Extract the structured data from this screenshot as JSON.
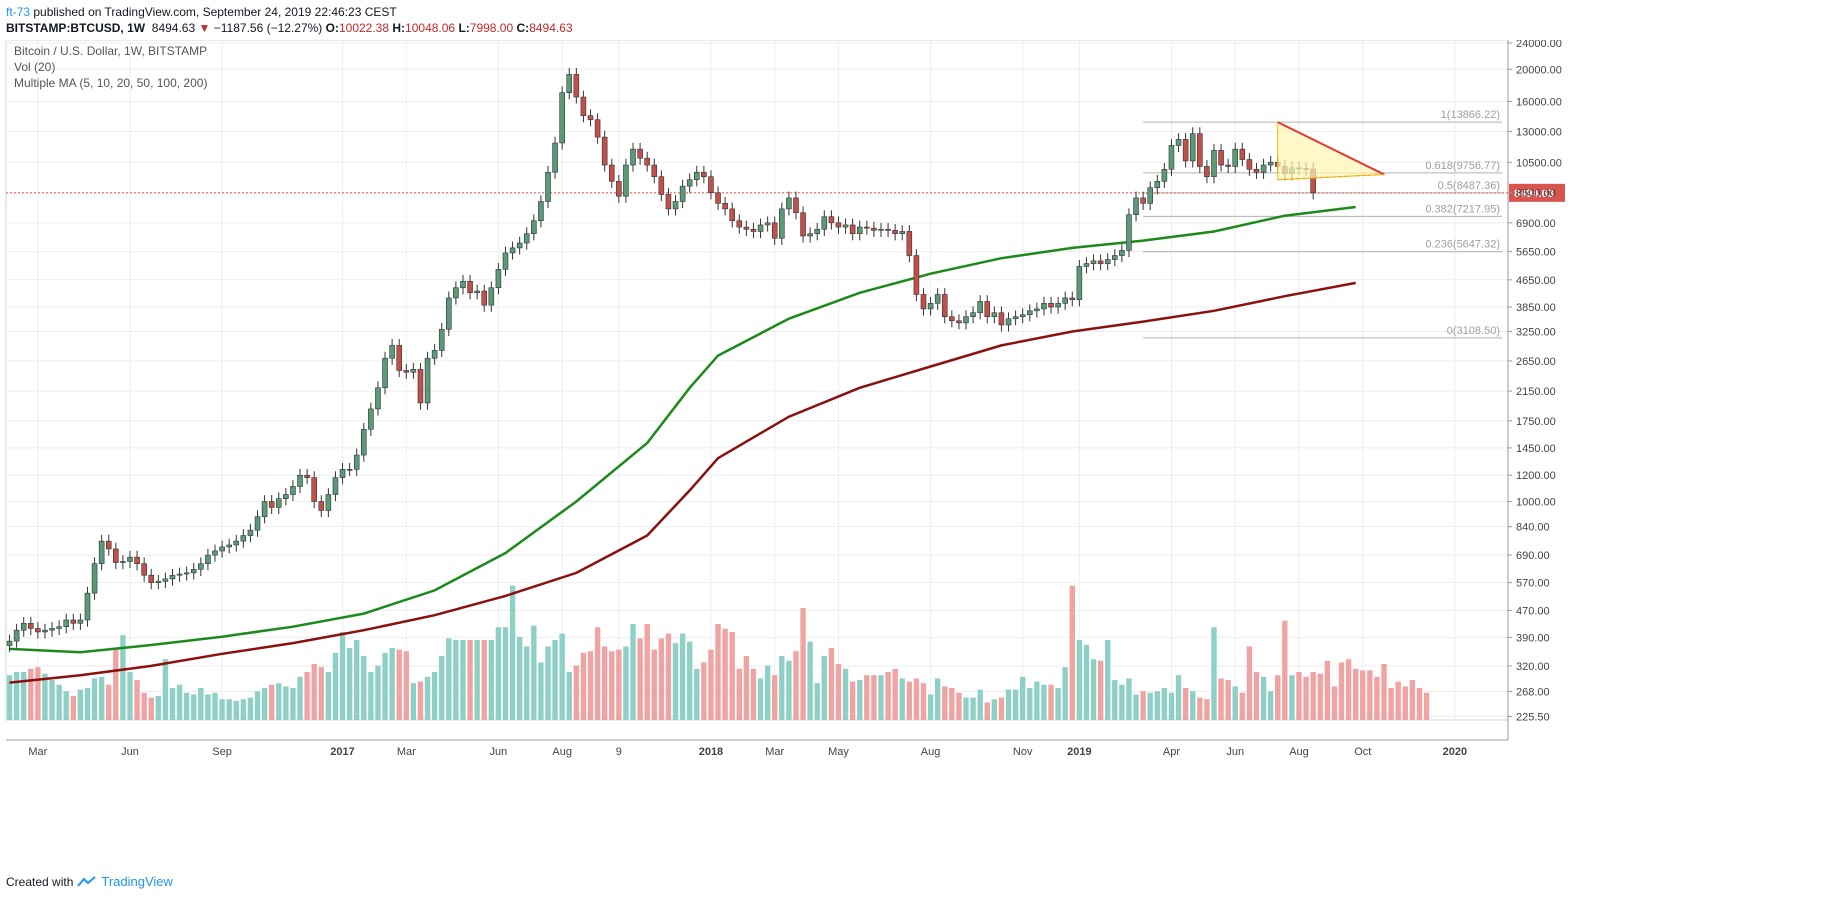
{
  "header": {
    "author": "ft-73",
    "published": "published on TradingView.com, September 24, 2019 22:46:23 CEST"
  },
  "symbol_bar": {
    "symbol": "BITSTAMP:BTCUSD, 1W",
    "last": "8494.63",
    "change_arrow": "▼",
    "change": "−1187.56 (−12.27%)",
    "o_label": "O:",
    "o": "10022.38",
    "h_label": "H:",
    "h": "10048.06",
    "l_label": "L:",
    "l": "7998.00",
    "c_label": "C:",
    "c": "8494.63"
  },
  "legend": [
    "Bitcoin / U.S. Dollar, 1W, BITSTAMP",
    "Vol (20)",
    "Multiple MA (5, 10, 20, 50, 100, 200)"
  ],
  "footer": {
    "created_with": "Created with",
    "brand": "TradingView"
  },
  "colors": {
    "up": "#5b9a78",
    "down": "#c2504a",
    "vol_up": "#8fd0c6",
    "vol_down": "#f0a3a3",
    "ma100": "#1b8a1b",
    "ma200": "#8b1010",
    "trend": "#e53935",
    "triangle_fill": "#fff6b3",
    "last_price_bg": "#d9534f"
  },
  "chart_data": {
    "type": "candlestick",
    "scale": "log",
    "ylim": [
      220,
      24500
    ],
    "y_ticks": [
      "24000.00",
      "20000.00",
      "16000.00",
      "13000.00",
      "10500.00",
      "8500.00",
      "6900.00",
      "5650.00",
      "4650.00",
      "3850.00",
      "3250.00",
      "2650.00",
      "2150.00",
      "1750.00",
      "1450.00",
      "1200.00",
      "1000.00",
      "840.00",
      "690.00",
      "570.00",
      "470.00",
      "390.00",
      "320.00",
      "268.00",
      "225.50"
    ],
    "y_tick_values": [
      24000,
      20000,
      16000,
      13000,
      10500,
      8500,
      6900,
      5650,
      4650,
      3850,
      3250,
      2650,
      2150,
      1750,
      1450,
      1200,
      1000,
      840,
      690,
      570,
      470,
      390,
      320,
      268,
      225.5
    ],
    "x_ticks": [
      {
        "label": "Mar",
        "week": 4
      },
      {
        "label": "Jun",
        "week": 17
      },
      {
        "label": "Sep",
        "week": 30
      },
      {
        "label": "2017",
        "week": 47
      },
      {
        "label": "Mar",
        "week": 56
      },
      {
        "label": "Jun",
        "week": 69
      },
      {
        "label": "Aug",
        "week": 78
      },
      {
        "label": "9",
        "week": 86
      },
      {
        "label": "2018",
        "week": 99
      },
      {
        "label": "Mar",
        "week": 108
      },
      {
        "label": "May",
        "week": 117
      },
      {
        "label": "Aug",
        "week": 130
      },
      {
        "label": "Nov",
        "week": 143
      },
      {
        "label": "2019",
        "week": 151
      },
      {
        "label": "Apr",
        "week": 164
      },
      {
        "label": "Jun",
        "week": 173
      },
      {
        "label": "Aug",
        "week": 182
      },
      {
        "label": "Oct",
        "week": 191
      },
      {
        "label": "2020",
        "week": 204
      }
    ],
    "bold_x_ticks": [
      "2017",
      "2018",
      "2019",
      "2020"
    ],
    "closes": [
      380,
      410,
      430,
      415,
      405,
      410,
      415,
      420,
      440,
      430,
      440,
      530,
      650,
      760,
      720,
      655,
      660,
      680,
      650,
      600,
      570,
      575,
      585,
      600,
      605,
      610,
      625,
      650,
      690,
      710,
      730,
      740,
      760,
      790,
      820,
      900,
      1000,
      960,
      1020,
      1050,
      1110,
      1200,
      1180,
      1000,
      940,
      1050,
      1180,
      1250,
      1250,
      1380,
      1650,
      1900,
      2200,
      2700,
      2950,
      2480,
      2450,
      2500,
      1980,
      2700,
      2850,
      3300,
      4100,
      4400,
      4600,
      4250,
      4300,
      3900,
      4400,
      5000,
      5600,
      5800,
      6000,
      6400,
      7000,
      8000,
      9800,
      12000,
      17000,
      19300,
      16500,
      14500,
      14100,
      12500,
      10300,
      9200,
      8300,
      10300,
      11500,
      10800,
      10300,
      9500,
      8400,
      7600,
      8000,
      8900,
      9300,
      9800,
      9500,
      8500,
      7900,
      7600,
      7000,
      6700,
      6600,
      6500,
      6800,
      6900,
      6200,
      7600,
      8200,
      7400,
      6300,
      6400,
      6600,
      7200,
      6900,
      6700,
      6800,
      6400,
      6700,
      6650,
      6550,
      6600,
      6550,
      6400,
      6500,
      5500,
      4200,
      3800,
      3950,
      4200,
      3600,
      3500,
      3450,
      3600,
      3700,
      4000,
      3600,
      3700,
      3400,
      3550,
      3600,
      3650,
      3750,
      3800,
      3950,
      3850,
      3950,
      4100,
      4050,
      5100,
      5200,
      5300,
      5200,
      5350,
      5500,
      5700,
      7300,
      8200,
      7900,
      8800,
      9200,
      10000,
      11800,
      12300,
      10600,
      12800,
      10200,
      9500,
      11400,
      10300,
      10200,
      11500,
      10700,
      10000,
      9800,
      10300,
      10500,
      10200,
      9700,
      10100,
      10050,
      10022,
      8495
    ],
    "opens_note": "open of each week = previous close",
    "ma100": [
      {
        "w": 0,
        "v": 360
      },
      {
        "w": 10,
        "v": 352
      },
      {
        "w": 20,
        "v": 370
      },
      {
        "w": 30,
        "v": 392
      },
      {
        "w": 40,
        "v": 420
      },
      {
        "w": 50,
        "v": 460
      },
      {
        "w": 60,
        "v": 540
      },
      {
        "w": 70,
        "v": 700
      },
      {
        "w": 80,
        "v": 1000
      },
      {
        "w": 90,
        "v": 1500
      },
      {
        "w": 96,
        "v": 2200
      },
      {
        "w": 100,
        "v": 2750
      },
      {
        "w": 110,
        "v": 3550
      },
      {
        "w": 120,
        "v": 4250
      },
      {
        "w": 130,
        "v": 4850
      },
      {
        "w": 140,
        "v": 5400
      },
      {
        "w": 150,
        "v": 5800
      },
      {
        "w": 160,
        "v": 6100
      },
      {
        "w": 170,
        "v": 6500
      },
      {
        "w": 180,
        "v": 7250
      },
      {
        "w": 190,
        "v": 7700
      }
    ],
    "ma200": [
      {
        "w": 0,
        "v": 285
      },
      {
        "w": 10,
        "v": 300
      },
      {
        "w": 20,
        "v": 320
      },
      {
        "w": 30,
        "v": 348
      },
      {
        "w": 40,
        "v": 375
      },
      {
        "w": 50,
        "v": 410
      },
      {
        "w": 60,
        "v": 455
      },
      {
        "w": 70,
        "v": 520
      },
      {
        "w": 80,
        "v": 610
      },
      {
        "w": 90,
        "v": 790
      },
      {
        "w": 96,
        "v": 1080
      },
      {
        "w": 100,
        "v": 1350
      },
      {
        "w": 110,
        "v": 1800
      },
      {
        "w": 120,
        "v": 2200
      },
      {
        "w": 130,
        "v": 2550
      },
      {
        "w": 140,
        "v": 2950
      },
      {
        "w": 150,
        "v": 3250
      },
      {
        "w": 160,
        "v": 3480
      },
      {
        "w": 170,
        "v": 3750
      },
      {
        "w": 180,
        "v": 4150
      },
      {
        "w": 190,
        "v": 4550
      }
    ],
    "volume_note": "volume bars rendered only as relative heights (0-1)",
    "volume": [
      0.28,
      0.3,
      0.3,
      0.32,
      0.33,
      0.29,
      0.25,
      0.22,
      0.18,
      0.15,
      0.19,
      0.2,
      0.26,
      0.27,
      0.22,
      0.45,
      0.53,
      0.3,
      0.25,
      0.17,
      0.14,
      0.15,
      0.38,
      0.2,
      0.22,
      0.17,
      0.16,
      0.2,
      0.16,
      0.17,
      0.13,
      0.13,
      0.12,
      0.13,
      0.14,
      0.18,
      0.2,
      0.22,
      0.23,
      0.21,
      0.2,
      0.27,
      0.3,
      0.35,
      0.33,
      0.3,
      0.42,
      0.55,
      0.45,
      0.5,
      0.4,
      0.3,
      0.34,
      0.42,
      0.45,
      0.44,
      0.43,
      0.23,
      0.24,
      0.27,
      0.3,
      0.4,
      0.51,
      0.5,
      0.5,
      0.5,
      0.5,
      0.5,
      0.5,
      0.58,
      0.58,
      0.84,
      0.52,
      0.46,
      0.59,
      0.36,
      0.46,
      0.5,
      0.54,
      0.3,
      0.34,
      0.42,
      0.43,
      0.58,
      0.46,
      0.43,
      0.44,
      0.46,
      0.6,
      0.51,
      0.6,
      0.44,
      0.51,
      0.54,
      0.48,
      0.54,
      0.49,
      0.32,
      0.36,
      0.44,
      0.6,
      0.57,
      0.55,
      0.32,
      0.4,
      0.32,
      0.26,
      0.34,
      0.28,
      0.4,
      0.37,
      0.43,
      0.7,
      0.49,
      0.23,
      0.4,
      0.45,
      0.35,
      0.32,
      0.24,
      0.25,
      0.28,
      0.28,
      0.28,
      0.3,
      0.32,
      0.26,
      0.24,
      0.26,
      0.23,
      0.16,
      0.26,
      0.21,
      0.2,
      0.17,
      0.14,
      0.14,
      0.19,
      0.11,
      0.13,
      0.14,
      0.19,
      0.19,
      0.27,
      0.2,
      0.24,
      0.22,
      0.22,
      0.2,
      0.33,
      0.84,
      0.5,
      0.47,
      0.38,
      0.37,
      0.5,
      0.25,
      0.22,
      0.26,
      0.16,
      0.18,
      0.17,
      0.18,
      0.2,
      0.17,
      0.28,
      0.2,
      0.18,
      0.14,
      0.13,
      0.58,
      0.26,
      0.25,
      0.21,
      0.17,
      0.46,
      0.3,
      0.27,
      0.18,
      0.28,
      0.62,
      0.28,
      0.3,
      0.27,
      0.3,
      0.29,
      0.37,
      0.21,
      0.36,
      0.38,
      0.32,
      0.31,
      0.31,
      0.27,
      0.35,
      0.2,
      0.24,
      0.21,
      0.25,
      0.2,
      0.17
    ],
    "fib_levels": [
      {
        "label": "1(13866.22)",
        "value": 13866.22
      },
      {
        "label": "0.618(9756.77)",
        "value": 9756.77
      },
      {
        "label": "0.5(8487.36)",
        "value": 8487.36
      },
      {
        "label": "0.382(7217.95)",
        "value": 7217.95
      },
      {
        "label": "0.236(5647.32)",
        "value": 5647.32
      },
      {
        "label": "0(3108.50)",
        "value": 3108.5
      }
    ],
    "last_price": {
      "label": "8494.63",
      "value": 8494.63
    }
  }
}
